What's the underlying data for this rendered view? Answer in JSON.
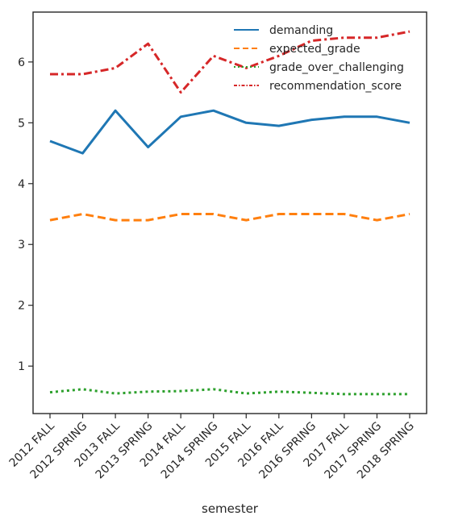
{
  "chart_data": {
    "type": "line",
    "xlabel": "semester",
    "ylabel": "",
    "title": "",
    "categories": [
      "2012 FALL",
      "2012 SPRING",
      "2013 FALL",
      "2013 SPRING",
      "2014 FALL",
      "2014 SPRING",
      "2015 FALL",
      "2016 FALL",
      "2016 SPRING",
      "2017 FALL",
      "2017 SPRING",
      "2018 SPRING"
    ],
    "yticks": [
      1,
      2,
      3,
      4,
      5,
      6
    ],
    "ylim": [
      0.22,
      6.82
    ],
    "grid": false,
    "legend_position": "top-right",
    "series": [
      {
        "name": "demanding",
        "color": "#1f77b4",
        "dash": "solid",
        "values": [
          4.7,
          4.5,
          5.2,
          4.6,
          5.1,
          5.2,
          5.0,
          4.95,
          5.05,
          5.1,
          5.1,
          5.0
        ]
      },
      {
        "name": "expected_grade",
        "color": "#ff7f0e",
        "dash": "dashed",
        "values": [
          3.4,
          3.5,
          3.4,
          3.4,
          3.5,
          3.5,
          3.4,
          3.5,
          3.5,
          3.5,
          3.4,
          3.5
        ]
      },
      {
        "name": "grade_over_challenging",
        "color": "#2ca02c",
        "dash": "dotted",
        "values": [
          0.57,
          0.62,
          0.55,
          0.58,
          0.59,
          0.62,
          0.55,
          0.58,
          0.56,
          0.54,
          0.54,
          0.54
        ]
      },
      {
        "name": "recommendation_score",
        "color": "#d62728",
        "dash": "dashdot",
        "values": [
          5.8,
          5.8,
          5.9,
          6.3,
          5.5,
          6.1,
          5.9,
          6.1,
          6.35,
          6.4,
          6.4,
          6.5
        ]
      }
    ]
  }
}
